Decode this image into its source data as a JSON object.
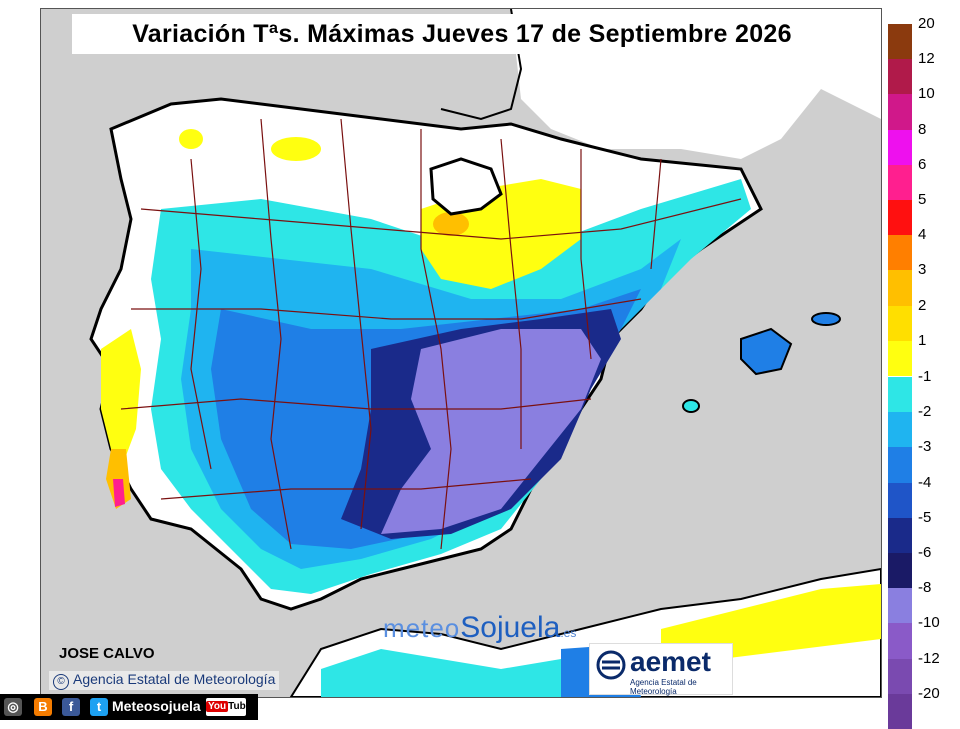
{
  "title": "Variación Tªs. Máximas Jueves 17 de Septiembre 2026",
  "author": "JOSE CALVO",
  "agency_credit": "Agencia Estatal de Meteorología",
  "watermark": {
    "part1": "meteo",
    "part2": "Sojuela",
    "part3": ".es"
  },
  "aemet": {
    "brand": "aemet",
    "subtitle": "Agencia Estatal de Meteorología"
  },
  "legend": {
    "warm": [
      {
        "label": "20",
        "color": "#8b3a0e"
      },
      {
        "label": "12",
        "color": "#b01a4a"
      },
      {
        "label": "10",
        "color": "#d0188a"
      },
      {
        "label": "8",
        "color": "#ee10ee"
      },
      {
        "label": "6",
        "color": "#ff1f8f"
      },
      {
        "label": "5",
        "color": "#ff1010"
      },
      {
        "label": "4",
        "color": "#ff7f00"
      },
      {
        "label": "3",
        "color": "#ffbf00"
      },
      {
        "label": "2",
        "color": "#ffdf00"
      },
      {
        "label": "1",
        "color": "#ffff10"
      }
    ],
    "cold": [
      {
        "label": "-1",
        "color": "#2ee6e6"
      },
      {
        "label": "-2",
        "color": "#1fb4f0"
      },
      {
        "label": "-3",
        "color": "#1f7fe6"
      },
      {
        "label": "-4",
        "color": "#1f55c8"
      },
      {
        "label": "-5",
        "color": "#1a2a8a"
      },
      {
        "label": "-6",
        "color": "#1a1a66"
      },
      {
        "label": "-8",
        "color": "#8a7fe0"
      },
      {
        "label": "-10",
        "color": "#8a5ac8"
      },
      {
        "label": "-12",
        "color": "#7a4ab0"
      },
      {
        "label": "-20",
        "color": "#6a3a9a"
      }
    ]
  },
  "social": {
    "name": "Meteosojuela",
    "youtube_label": "You",
    "youtube_tube": "Tube"
  },
  "icons": [
    "instagram-icon",
    "blogger-icon",
    "facebook-icon",
    "twitter-icon",
    "youtube-icon"
  ]
}
